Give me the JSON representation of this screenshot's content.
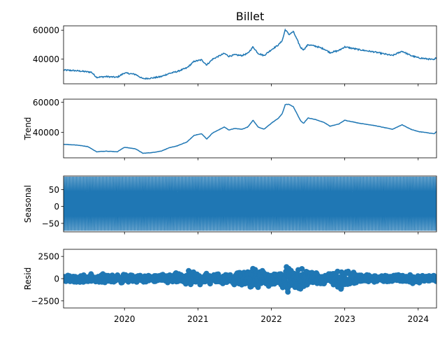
{
  "title": "Billet",
  "chart_data": [
    {
      "type": "line",
      "panel": "observed",
      "ylabel": "",
      "xlim": [
        2019.17,
        2024.25
      ],
      "ylim": [
        23000,
        63000
      ],
      "yticks": [
        40000,
        60000
      ],
      "ytick_labels": [
        "40000",
        "60000"
      ],
      "color": "#1f77b4",
      "x": [
        2019.17,
        2019.35,
        2019.55,
        2019.62,
        2019.75,
        2019.9,
        2020.0,
        2020.15,
        2020.25,
        2020.38,
        2020.5,
        2020.6,
        2020.72,
        2020.85,
        2020.95,
        2021.05,
        2021.12,
        2021.2,
        2021.3,
        2021.36,
        2021.42,
        2021.5,
        2021.6,
        2021.68,
        2021.75,
        2021.82,
        2021.9,
        2022.0,
        2022.1,
        2022.15,
        2022.19,
        2022.24,
        2022.3,
        2022.4,
        2022.44,
        2022.5,
        2022.6,
        2022.72,
        2022.8,
        2022.92,
        2023.0,
        2023.1,
        2023.2,
        2023.4,
        2023.55,
        2023.65,
        2023.78,
        2023.9,
        2024.0,
        2024.15,
        2024.22,
        2024.25
      ],
      "y": [
        32500,
        32000,
        31000,
        27500,
        28000,
        27500,
        30500,
        29500,
        26500,
        27000,
        28000,
        30000,
        31500,
        34000,
        38500,
        39500,
        36000,
        40000,
        42500,
        44000,
        42000,
        43000,
        42500,
        44000,
        48500,
        44000,
        42500,
        46500,
        50000,
        53000,
        60500,
        57000,
        59000,
        48000,
        46500,
        50000,
        49000,
        47000,
        44500,
        46000,
        48500,
        47500,
        46500,
        45000,
        43500,
        42500,
        45500,
        42500,
        41000,
        40000,
        39500,
        41500
      ]
    },
    {
      "type": "line",
      "panel": "trend",
      "ylabel": "Trend",
      "xlim": [
        2019.17,
        2024.25
      ],
      "ylim": [
        23000,
        62000
      ],
      "yticks": [
        40000,
        60000
      ],
      "ytick_labels": [
        "40000",
        "60000"
      ],
      "color": "#1f77b4",
      "x": [
        2019.17,
        2019.35,
        2019.5,
        2019.62,
        2019.75,
        2019.9,
        2020.0,
        2020.15,
        2020.25,
        2020.38,
        2020.5,
        2020.6,
        2020.72,
        2020.85,
        2020.95,
        2021.05,
        2021.12,
        2021.2,
        2021.3,
        2021.36,
        2021.42,
        2021.5,
        2021.6,
        2021.68,
        2021.75,
        2021.82,
        2021.9,
        2022.0,
        2022.1,
        2022.15,
        2022.19,
        2022.24,
        2022.3,
        2022.4,
        2022.44,
        2022.5,
        2022.6,
        2022.72,
        2022.8,
        2022.92,
        2023.0,
        2023.1,
        2023.2,
        2023.4,
        2023.55,
        2023.65,
        2023.78,
        2023.9,
        2024.0,
        2024.15,
        2024.22,
        2024.25
      ],
      "y": [
        32000,
        31500,
        30500,
        27000,
        27500,
        27000,
        30000,
        29000,
        26000,
        26500,
        27500,
        29500,
        31000,
        33500,
        38000,
        39000,
        35500,
        39500,
        42000,
        43500,
        41500,
        42500,
        42000,
        43500,
        48000,
        43500,
        42000,
        46000,
        49500,
        52500,
        58500,
        58500,
        57000,
        47500,
        46000,
        49500,
        48500,
        46500,
        44000,
        45500,
        48000,
        47000,
        46000,
        44500,
        43000,
        42000,
        45000,
        42000,
        40500,
        39500,
        39000,
        40500
      ]
    },
    {
      "type": "line",
      "panel": "seasonal",
      "ylabel": "Seasonal",
      "xlim": [
        2019.17,
        2024.25
      ],
      "ylim": [
        -75,
        90
      ],
      "yticks": [
        -50,
        0,
        50
      ],
      "ytick_labels": [
        "−50",
        "0",
        "50"
      ],
      "color": "#1f77b4",
      "oscillation": {
        "min": -72,
        "max": 88,
        "cycles": 260
      }
    },
    {
      "type": "scatter",
      "panel": "resid",
      "ylabel": "Resid",
      "xlim": [
        2019.17,
        2024.25
      ],
      "ylim": [
        -3300,
        3300
      ],
      "yticks": [
        -2500,
        0,
        2500
      ],
      "ytick_labels": [
        "−2500",
        "0",
        "2500"
      ],
      "color": "#1f77b4",
      "envelope": {
        "x": [
          2019.17,
          2019.5,
          2019.8,
          2020.3,
          2020.8,
          2020.9,
          2021.0,
          2021.3,
          2021.6,
          2021.75,
          2021.9,
          2022.1,
          2022.2,
          2022.3,
          2022.45,
          2022.6,
          2022.8,
          2022.95,
          2023.2,
          2023.6,
          2023.9,
          2024.1,
          2024.25
        ],
        "amp": [
          400,
          600,
          700,
          500,
          800,
          1200,
          900,
          700,
          1000,
          1700,
          900,
          1000,
          2900,
          1600,
          1300,
          900,
          700,
          1800,
          600,
          500,
          700,
          500,
          400
        ]
      }
    }
  ],
  "x_axis": {
    "tick_values": [
      2020,
      2021,
      2022,
      2023,
      2024
    ],
    "tick_labels": [
      "2020",
      "2021",
      "2022",
      "2023",
      "2024"
    ]
  }
}
